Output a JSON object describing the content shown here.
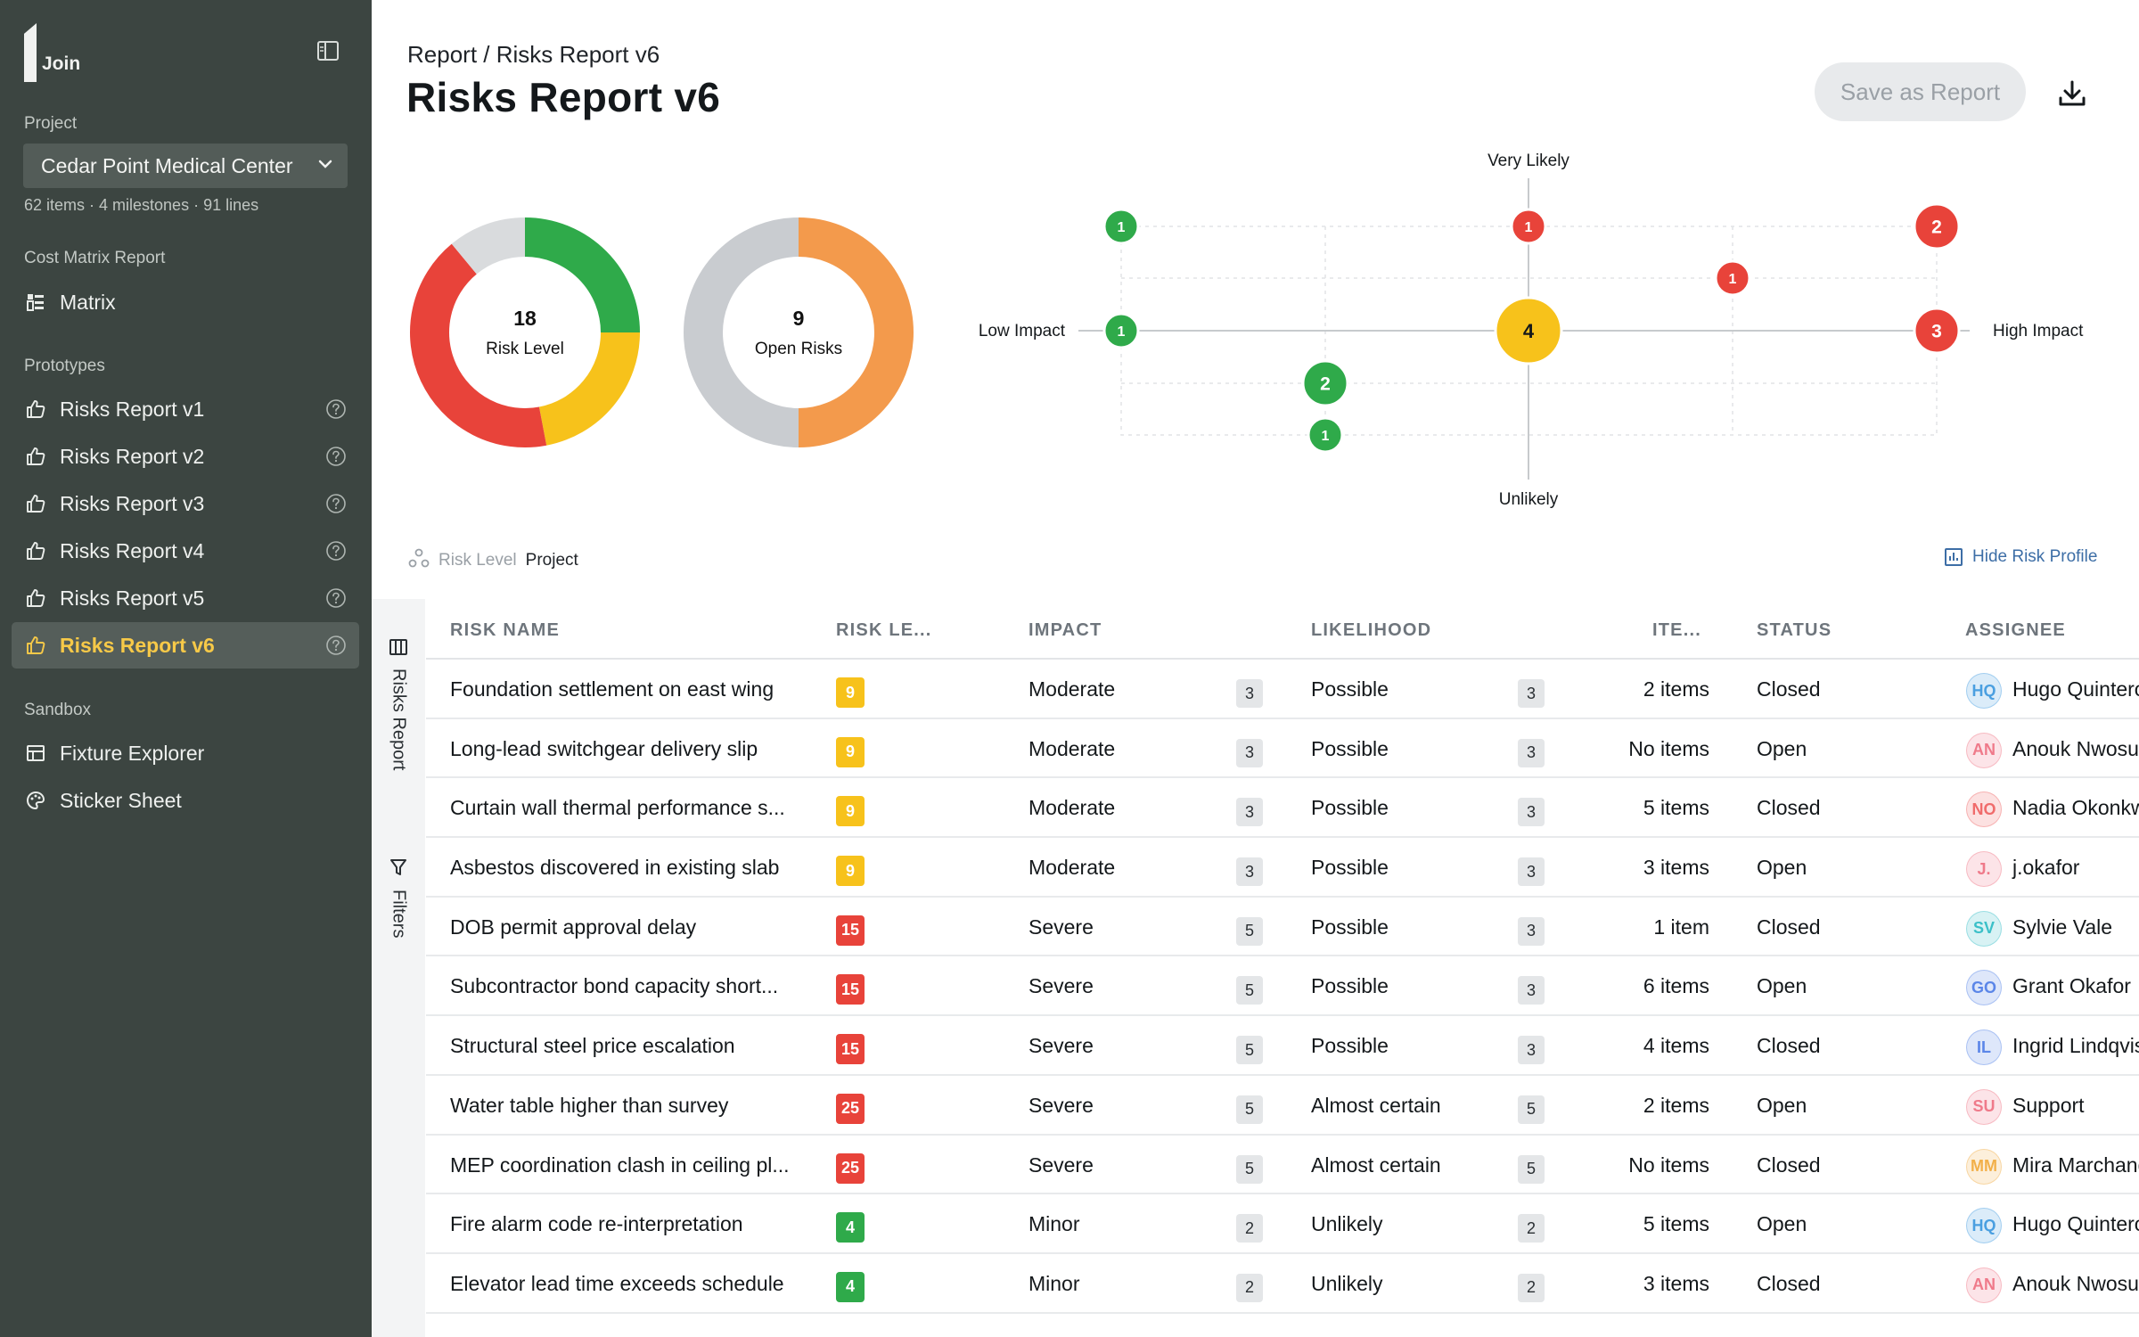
{
  "sidebar": {
    "logo_text": "Join",
    "project_label": "Project",
    "project_value": "Cedar Point Medical Center",
    "project_meta": "62 items · 4 milestones · 91 lines",
    "cost_matrix_label": "Cost Matrix Report",
    "matrix_item": "Matrix",
    "prototypes_label": "Prototypes",
    "prototypes": [
      {
        "label": "Risks Report v1"
      },
      {
        "label": "Risks Report v2"
      },
      {
        "label": "Risks Report v3"
      },
      {
        "label": "Risks Report v4"
      },
      {
        "label": "Risks Report v5"
      },
      {
        "label": "Risks Report v6"
      }
    ],
    "sandbox_label": "Sandbox",
    "sandbox": [
      {
        "label": "Fixture Explorer",
        "icon": "table-icon"
      },
      {
        "label": "Sticker Sheet",
        "icon": "palette-icon"
      }
    ]
  },
  "header": {
    "breadcrumb": "Report / Risks Report v6",
    "title": "Risks Report v6",
    "save_label": "Save as Report"
  },
  "donuts": [
    {
      "value": "18",
      "label": "Risk Level",
      "segments": [
        {
          "color": "#2faa4a",
          "fraction": 0.25
        },
        {
          "color": "#f7c21b",
          "fraction": 0.22
        },
        {
          "color": "#e8433a",
          "fraction": 0.42
        },
        {
          "color": "#d9dbdd",
          "fraction": 0.11
        }
      ]
    },
    {
      "value": "9",
      "label": "Open Risks",
      "segments": [
        {
          "color": "#f39a4c",
          "fraction": 0.5
        },
        {
          "color": "#c9ccd0",
          "fraction": 0.5
        }
      ]
    }
  ],
  "matrix": {
    "label_top": "Very Likely",
    "label_bottom": "Unlikely",
    "label_left": "Low Impact",
    "label_right": "High Impact",
    "bubbles": [
      {
        "impact": 1,
        "likelihood": 5,
        "count": 1,
        "color": "#2faa4a"
      },
      {
        "impact": 3,
        "likelihood": 5,
        "count": 1,
        "color": "#e8433a"
      },
      {
        "impact": 5,
        "likelihood": 5,
        "count": 2,
        "color": "#e8433a"
      },
      {
        "impact": 4,
        "likelihood": 4,
        "count": 1,
        "color": "#e8433a"
      },
      {
        "impact": 1,
        "likelihood": 3,
        "count": 1,
        "color": "#2faa4a"
      },
      {
        "impact": 3,
        "likelihood": 3,
        "count": 4,
        "color": "#f7c21b"
      },
      {
        "impact": 5,
        "likelihood": 3,
        "count": 3,
        "color": "#e8433a"
      },
      {
        "impact": 2,
        "likelihood": 2,
        "count": 2,
        "color": "#2faa4a"
      },
      {
        "impact": 2,
        "likelihood": 1,
        "count": 1,
        "color": "#2faa4a"
      }
    ]
  },
  "level_row": {
    "label": "Risk Level",
    "value": "Project"
  },
  "hide_profile": "Hide Risk Profile",
  "rail": {
    "report_tab": "Risks Report",
    "filters_tab": "Filters"
  },
  "table": {
    "headers": [
      "RISK NAME",
      "RISK LE...",
      "IMPACT",
      "LIKELIHOOD",
      "ITE...",
      "STATUS",
      "ASSIGNEE"
    ],
    "rows": [
      {
        "name": "Foundation settlement on east wing",
        "level": "9",
        "level_color": "#f7c21b",
        "impact": "Moderate",
        "impact_n": "3",
        "likelihood": "Possible",
        "likelihood_n": "3",
        "items": "2 items",
        "status": "Closed",
        "initials": "HQ",
        "avatar_color": "#4a9fe0",
        "assignee": "Hugo Quintero"
      },
      {
        "name": "Long-lead switchgear delivery slip",
        "level": "9",
        "level_color": "#f7c21b",
        "impact": "Moderate",
        "impact_n": "3",
        "likelihood": "Possible",
        "likelihood_n": "3",
        "items": "No items",
        "status": "Open",
        "initials": "AN",
        "avatar_color": "#ef7a8a",
        "assignee": "Anouk Nwosu"
      },
      {
        "name": "Curtain wall thermal performance s...",
        "level": "9",
        "level_color": "#f7c21b",
        "impact": "Moderate",
        "impact_n": "3",
        "likelihood": "Possible",
        "likelihood_n": "3",
        "items": "5 items",
        "status": "Closed",
        "initials": "NO",
        "avatar_color": "#f06b6b",
        "assignee": "Nadia Okonkwo"
      },
      {
        "name": "Asbestos discovered in existing slab",
        "level": "9",
        "level_color": "#f7c21b",
        "impact": "Moderate",
        "impact_n": "3",
        "likelihood": "Possible",
        "likelihood_n": "3",
        "items": "3 items",
        "status": "Open",
        "initials": "J.",
        "avatar_color": "#ef7a8a",
        "assignee": "j.okafor"
      },
      {
        "name": "DOB permit approval delay",
        "level": "15",
        "level_color": "#e8433a",
        "impact": "Severe",
        "impact_n": "5",
        "likelihood": "Possible",
        "likelihood_n": "3",
        "items": "1 item",
        "status": "Closed",
        "initials": "SV",
        "avatar_color": "#3bc0c8",
        "assignee": "Sylvie Vale"
      },
      {
        "name": "Subcontractor bond capacity short...",
        "level": "15",
        "level_color": "#e8433a",
        "impact": "Severe",
        "impact_n": "5",
        "likelihood": "Possible",
        "likelihood_n": "3",
        "items": "6 items",
        "status": "Open",
        "initials": "GO",
        "avatar_color": "#5b86e8",
        "assignee": "Grant Okafor"
      },
      {
        "name": "Structural steel price escalation",
        "level": "15",
        "level_color": "#e8433a",
        "impact": "Severe",
        "impact_n": "5",
        "likelihood": "Possible",
        "likelihood_n": "3",
        "items": "4 items",
        "status": "Closed",
        "initials": "IL",
        "avatar_color": "#5b86e8",
        "assignee": "Ingrid Lindqvist"
      },
      {
        "name": "Water table higher than survey",
        "level": "25",
        "level_color": "#e8433a",
        "impact": "Severe",
        "impact_n": "5",
        "likelihood": "Almost certain",
        "likelihood_n": "5",
        "items": "2 items",
        "status": "Open",
        "initials": "SU",
        "avatar_color": "#ef7a8a",
        "assignee": "Support"
      },
      {
        "name": "MEP coordination clash in ceiling pl...",
        "level": "25",
        "level_color": "#e8433a",
        "impact": "Severe",
        "impact_n": "5",
        "likelihood": "Almost certain",
        "likelihood_n": "5",
        "items": "No items",
        "status": "Closed",
        "initials": "MM",
        "avatar_color": "#f2b04a",
        "assignee": "Mira Marchand"
      },
      {
        "name": "Fire alarm code re-interpretation",
        "level": "4",
        "level_color": "#2faa4a",
        "impact": "Minor",
        "impact_n": "2",
        "likelihood": "Unlikely",
        "likelihood_n": "2",
        "items": "5 items",
        "status": "Open",
        "initials": "HQ",
        "avatar_color": "#4a9fe0",
        "assignee": "Hugo Quintero"
      },
      {
        "name": "Elevator lead time exceeds schedule",
        "level": "4",
        "level_color": "#2faa4a",
        "impact": "Minor",
        "impact_n": "2",
        "likelihood": "Unlikely",
        "likelihood_n": "2",
        "items": "3 items",
        "status": "Closed",
        "initials": "AN",
        "avatar_color": "#ef7a8a",
        "assignee": "Anouk Nwosu"
      }
    ]
  }
}
